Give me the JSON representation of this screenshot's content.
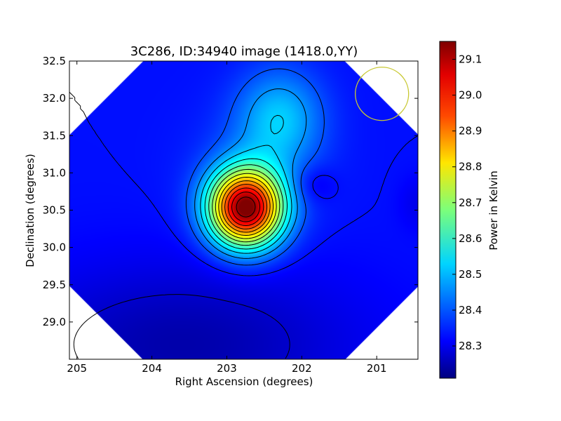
{
  "chart_data": {
    "type": "heatmap",
    "title": "3C286, ID:34940 image (1418.0,YY)",
    "xlabel": "Right Ascension (degrees)",
    "ylabel": "Declination (degrees)",
    "xlim": [
      205.1,
      200.45
    ],
    "ylim": [
      28.5,
      32.5
    ],
    "x_ticks": [
      205,
      204,
      203,
      202,
      201
    ],
    "y_ticks": [
      29.0,
      29.5,
      30.0,
      30.5,
      31.0,
      31.5,
      32.0,
      32.5
    ],
    "x_tick_labels": [
      "205",
      "204",
      "203",
      "202",
      "201"
    ],
    "y_tick_labels": [
      "29.0",
      "29.5",
      "30.0",
      "30.5",
      "31.0",
      "31.5",
      "32.0",
      "32.5"
    ],
    "colorbar": {
      "label": "Power in Kelvin",
      "range": [
        28.21,
        29.15
      ],
      "ticks": [
        28.3,
        28.4,
        28.5,
        28.6,
        28.7,
        28.8,
        28.9,
        29.0,
        29.1
      ],
      "tick_labels": [
        "28.3",
        "28.4",
        "28.5",
        "28.6",
        "28.7",
        "28.8",
        "28.9",
        "29.0",
        "29.1"
      ],
      "colormap": "jet"
    },
    "peak": {
      "ra": 202.75,
      "dec": 30.53,
      "value": 29.15
    },
    "secondary_peak": {
      "ra": 202.3,
      "dec": 31.75,
      "value": 28.5
    },
    "beam_circle": {
      "ra": 200.93,
      "dec": 32.06,
      "color": "#c8c832"
    },
    "contours": "black"
  }
}
